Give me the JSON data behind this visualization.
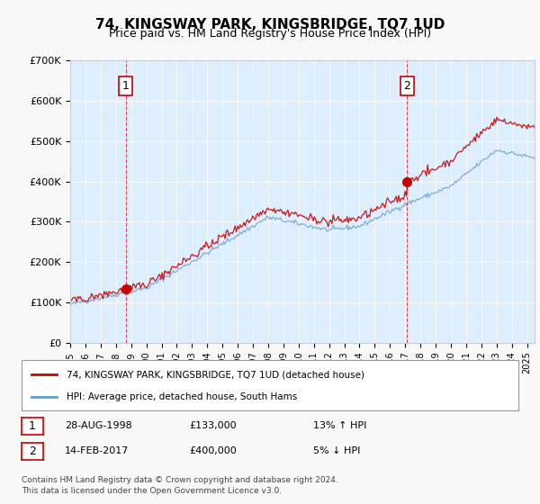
{
  "title": "74, KINGSWAY PARK, KINGSBRIDGE, TQ7 1UD",
  "subtitle": "Price paid vs. HM Land Registry's House Price Index (HPI)",
  "bg_color": "#ddeeff",
  "plot_bg_color": "#ddeeff",
  "red_line_color": "#cc0000",
  "blue_line_color": "#6699cc",
  "marker_color": "#cc0000",
  "vline_color": "#cc0000",
  "sale1_year": 1998.65,
  "sale1_price": 133000,
  "sale1_label": "1",
  "sale2_year": 2017.12,
  "sale2_price": 400000,
  "sale2_label": "2",
  "ymin": 0,
  "ymax": 700000,
  "xmin": 1995,
  "xmax": 2025.5,
  "ylabel_ticks": [
    0,
    100000,
    200000,
    300000,
    400000,
    500000,
    600000,
    700000
  ],
  "ylabel_labels": [
    "£0",
    "£100K",
    "£200K",
    "£300K",
    "£400K",
    "£500K",
    "£600K",
    "£700K"
  ],
  "xtick_years": [
    1995,
    1996,
    1997,
    1998,
    1999,
    2000,
    2001,
    2002,
    2003,
    2004,
    2005,
    2006,
    2007,
    2008,
    2009,
    2010,
    2011,
    2012,
    2013,
    2014,
    2015,
    2016,
    2017,
    2018,
    2019,
    2020,
    2021,
    2022,
    2023,
    2024,
    2025
  ],
  "legend_label1": "74, KINGSWAY PARK, KINGSBRIDGE, TQ7 1UD (detached house)",
  "legend_label2": "HPI: Average price, detached house, South Hams",
  "footnote1": "Contains HM Land Registry data © Crown copyright and database right 2024.",
  "footnote2": "This data is licensed under the Open Government Licence v3.0.",
  "table_row1_num": "1",
  "table_row1_date": "28-AUG-1998",
  "table_row1_price": "£133,000",
  "table_row1_hpi": "13% ↑ HPI",
  "table_row2_num": "2",
  "table_row2_date": "14-FEB-2017",
  "table_row2_price": "£400,000",
  "table_row2_hpi": "5% ↓ HPI"
}
